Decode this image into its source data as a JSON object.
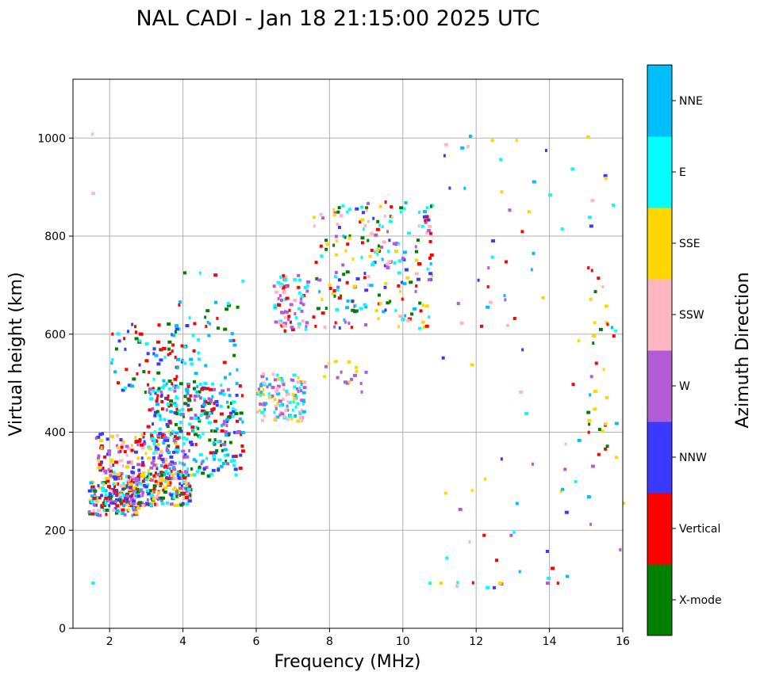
{
  "chart_data": {
    "type": "scatter",
    "title": "NAL CADI - Jan 18 21:15:00 2025 UTC",
    "xlabel": "Frequency (MHz)",
    "ylabel": "Virtual height (km)",
    "xlim": [
      1,
      16
    ],
    "ylim": [
      0,
      1120
    ],
    "xticks": [
      2,
      4,
      6,
      8,
      10,
      12,
      14,
      16
    ],
    "yticks": [
      0,
      200,
      400,
      600,
      800,
      1000
    ],
    "grid": true,
    "colorbar": {
      "label": "Azimuth Direction",
      "categories": [
        {
          "name": "X-mode",
          "color": "#008000"
        },
        {
          "name": "Vertical",
          "color": "#ff0000"
        },
        {
          "name": "NNW",
          "color": "#3a3aff"
        },
        {
          "name": "W",
          "color": "#b45bd6"
        },
        {
          "name": "SSW",
          "color": "#ffb6c1"
        },
        {
          "name": "SSE",
          "color": "#ffd700"
        },
        {
          "name": "E",
          "color": "#00ffff"
        },
        {
          "name": "NNE",
          "color": "#00bfff"
        }
      ]
    },
    "clusters": [
      {
        "f": [
          1.4,
          2.8
        ],
        "h": [
          230,
          300
        ],
        "n": 150,
        "colors": [
          6,
          7,
          1,
          3,
          4,
          5,
          0,
          2
        ]
      },
      {
        "f": [
          2.0,
          4.2
        ],
        "h": [
          250,
          320
        ],
        "n": 260,
        "colors": [
          0,
          2,
          1,
          4,
          3,
          5,
          6
        ]
      },
      {
        "f": [
          3.0,
          5.6
        ],
        "h": [
          310,
          500
        ],
        "n": 320,
        "colors": [
          6,
          6,
          7,
          0,
          2,
          1,
          3
        ]
      },
      {
        "f": [
          1.6,
          3.8
        ],
        "h": [
          300,
          400
        ],
        "n": 150,
        "colors": [
          4,
          1,
          3,
          2,
          5
        ]
      },
      {
        "f": [
          2.0,
          4.5
        ],
        "h": [
          480,
          620
        ],
        "n": 80,
        "colors": [
          7,
          6,
          0,
          1,
          2
        ]
      },
      {
        "f": [
          3.5,
          5.6
        ],
        "h": [
          420,
          730
        ],
        "n": 60,
        "colors": [
          0,
          7,
          6,
          1
        ]
      },
      {
        "f": [
          6.0,
          7.3
        ],
        "h": [
          420,
          520
        ],
        "n": 120,
        "colors": [
          4,
          6,
          7,
          5,
          3
        ]
      },
      {
        "f": [
          6.4,
          7.4
        ],
        "h": [
          600,
          720
        ],
        "n": 80,
        "colors": [
          4,
          3,
          1,
          6
        ]
      },
      {
        "f": [
          7.5,
          10.8
        ],
        "h": [
          610,
          870
        ],
        "n": 230,
        "colors": [
          1,
          0,
          5,
          3,
          2,
          4,
          7,
          6
        ]
      },
      {
        "f": [
          7.8,
          9.0
        ],
        "h": [
          480,
          550
        ],
        "n": 18,
        "colors": [
          5,
          3
        ]
      },
      {
        "f": [
          11.0,
          15.8
        ],
        "h": [
          80,
          1005
        ],
        "n": 90,
        "colors": [
          5,
          3,
          4,
          7,
          2,
          1,
          6
        ]
      },
      {
        "f": [
          15.0,
          15.6
        ],
        "h": [
          340,
          740
        ],
        "n": 28,
        "colors": [
          1,
          5,
          0
        ]
      }
    ],
    "isolated_points": [
      {
        "f": 1.5,
        "h": 1008,
        "c": 4
      },
      {
        "f": 1.5,
        "h": 887,
        "c": 4
      },
      {
        "f": 1.5,
        "h": 92,
        "c": 6
      },
      {
        "f": 15.0,
        "h": 1002,
        "c": 5
      },
      {
        "f": 15.5,
        "h": 918,
        "c": 5
      },
      {
        "f": 12.4,
        "h": 995,
        "c": 5
      },
      {
        "f": 16.0,
        "h": 255,
        "c": 5
      },
      {
        "f": 15.9,
        "h": 160,
        "c": 3
      },
      {
        "f": 12.6,
        "h": 92,
        "c": 5
      },
      {
        "f": 14.2,
        "h": 92,
        "c": 1
      },
      {
        "f": 13.9,
        "h": 92,
        "c": 3
      },
      {
        "f": 10.7,
        "h": 92,
        "c": 6
      },
      {
        "f": 11.0,
        "h": 92,
        "c": 5
      }
    ]
  }
}
